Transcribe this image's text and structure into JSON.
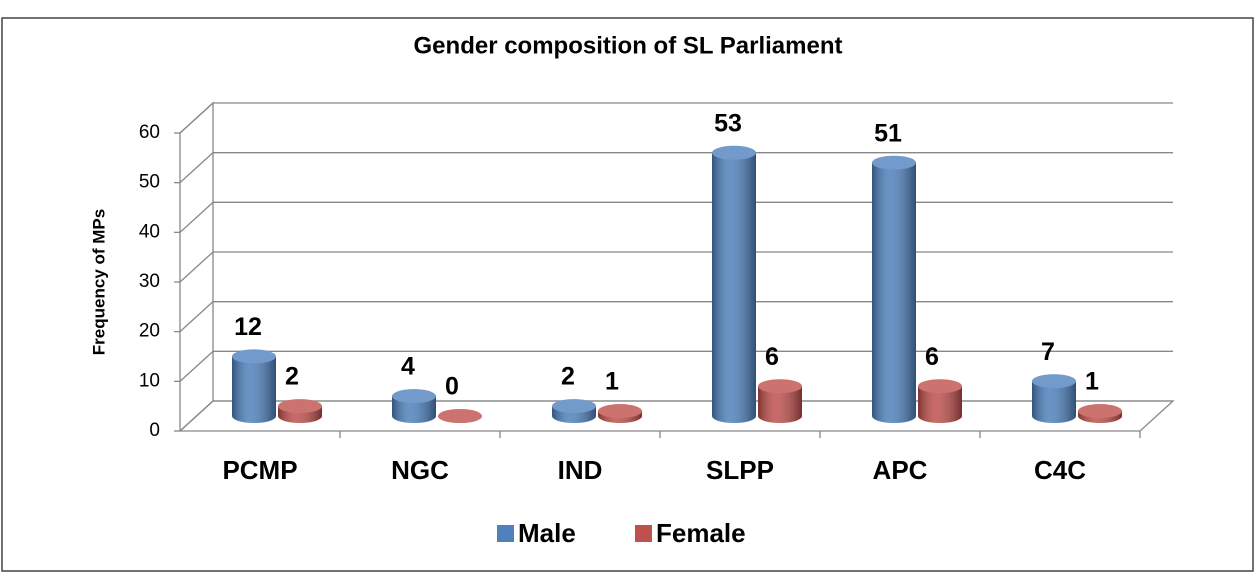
{
  "chart_data": {
    "type": "bar3d",
    "title": "Gender composition of SL Parliament",
    "y_label": "Frequency of MPs",
    "categories": [
      "PCMP",
      "NGC",
      "IND",
      "SLPP",
      "APC",
      "C4C"
    ],
    "series": [
      {
        "name": "Male",
        "color": "#4f81bd",
        "values": [
          12,
          4,
          2,
          53,
          51,
          7
        ]
      },
      {
        "name": "Female",
        "color": "#c0504d",
        "values": [
          2,
          0,
          1,
          6,
          6,
          1
        ]
      }
    ],
    "ylim": [
      0,
      60
    ],
    "yticks": [
      0,
      10,
      20,
      30,
      40,
      50,
      60
    ],
    "grid": true,
    "legend": "bottom"
  }
}
